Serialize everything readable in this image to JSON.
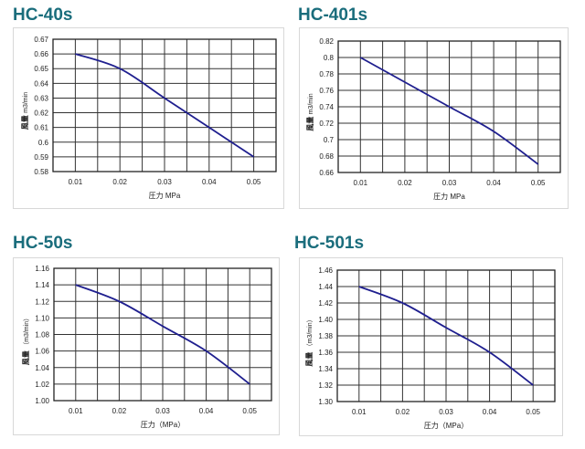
{
  "chart_data": [
    {
      "type": "line",
      "title": "HC-40s",
      "xlabel": "圧力 MPa",
      "ylabel_main": "風量",
      "ylabel_unit": "m3/min",
      "x": [
        0.01,
        0.02,
        0.03,
        0.04,
        0.05
      ],
      "x_tick_labels": [
        "0.01",
        "0.02",
        "0.03",
        "0.04",
        "0.05"
      ],
      "xlim": [
        0.005,
        0.055
      ],
      "ylim": [
        0.58,
        0.67
      ],
      "y_ticks": [
        0.58,
        0.59,
        0.6,
        0.61,
        0.62,
        0.63,
        0.64,
        0.65,
        0.66,
        0.67
      ],
      "y_tick_labels": [
        "0.58",
        "0.59",
        "0.6",
        "0.61",
        "0.62",
        "0.63",
        "0.64",
        "0.65",
        "0.66",
        "0.67"
      ],
      "series": [
        {
          "values": [
            0.66,
            0.65,
            0.63,
            0.61,
            0.59
          ],
          "color": "#1f1f8f"
        }
      ],
      "grid": true
    },
    {
      "type": "line",
      "title": "HC-401s",
      "xlabel": "圧力 MPa",
      "ylabel_main": "風量",
      "ylabel_unit": "m3/min",
      "x": [
        0.01,
        0.02,
        0.03,
        0.04,
        0.05
      ],
      "x_tick_labels": [
        "0.01",
        "0.02",
        "0.03",
        "0.04",
        "0.05"
      ],
      "xlim": [
        0.005,
        0.055
      ],
      "ylim": [
        0.66,
        0.82
      ],
      "y_ticks": [
        0.66,
        0.68,
        0.7,
        0.72,
        0.74,
        0.76,
        0.78,
        0.8,
        0.82
      ],
      "y_tick_labels": [
        "0.66",
        "0.68",
        "0.7",
        "0.72",
        "0.74",
        "0.76",
        "0.78",
        "0.8",
        "0.82"
      ],
      "series": [
        {
          "values": [
            0.8,
            0.77,
            0.74,
            0.71,
            0.67
          ],
          "color": "#1f1f8f"
        }
      ],
      "grid": true
    },
    {
      "type": "line",
      "title": "HC-50s",
      "xlabel": "圧力（MPa）",
      "ylabel_main": "風量",
      "ylabel_unit": "（m3/min）",
      "x": [
        0.01,
        0.02,
        0.03,
        0.04,
        0.05
      ],
      "x_tick_labels": [
        "0.01",
        "0.02",
        "0.03",
        "0.04",
        "0.05"
      ],
      "xlim": [
        0.005,
        0.055
      ],
      "ylim": [
        1.0,
        1.16
      ],
      "y_ticks": [
        1.0,
        1.02,
        1.04,
        1.06,
        1.08,
        1.1,
        1.12,
        1.14,
        1.16
      ],
      "y_tick_labels": [
        "1.00",
        "1.02",
        "1.04",
        "1.06",
        "1.08",
        "1.10",
        "1.12",
        "1.14",
        "1.16"
      ],
      "series": [
        {
          "values": [
            1.14,
            1.12,
            1.09,
            1.06,
            1.02
          ],
          "color": "#1f1f8f"
        }
      ],
      "grid": true
    },
    {
      "type": "line",
      "title": "HC-501s",
      "xlabel": "圧力（MPa）",
      "ylabel_main": "風量",
      "ylabel_unit": "（m3/min）",
      "x": [
        0.01,
        0.02,
        0.03,
        0.04,
        0.05
      ],
      "x_tick_labels": [
        "0.01",
        "0.02",
        "0.03",
        "0.04",
        "0.05"
      ],
      "xlim": [
        0.005,
        0.055
      ],
      "ylim": [
        1.3,
        1.46
      ],
      "y_ticks": [
        1.3,
        1.32,
        1.34,
        1.36,
        1.38,
        1.4,
        1.42,
        1.44,
        1.46
      ],
      "y_tick_labels": [
        "1.30",
        "1.32",
        "1.34",
        "1.36",
        "1.38",
        "1.40",
        "1.42",
        "1.44",
        "1.46"
      ],
      "series": [
        {
          "values": [
            1.44,
            1.42,
            1.39,
            1.36,
            1.32
          ],
          "color": "#1f1f8f"
        }
      ],
      "grid": true
    }
  ]
}
